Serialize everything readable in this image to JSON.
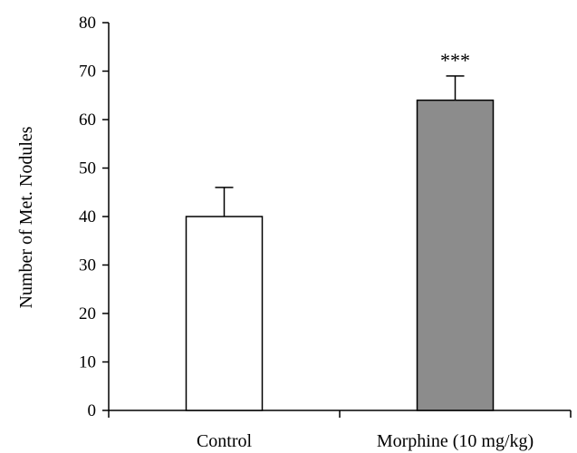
{
  "chart_data": {
    "type": "bar",
    "title": "",
    "xlabel": "",
    "ylabel": "Number of Met. Nodules",
    "ylim": [
      0,
      80
    ],
    "yticks": [
      0,
      10,
      20,
      30,
      40,
      50,
      60,
      70,
      80
    ],
    "categories": [
      "Control",
      "Morphine (10 mg/kg)"
    ],
    "values": [
      40,
      64
    ],
    "errors": [
      6,
      5
    ],
    "bar_colors": [
      "#ffffff",
      "#8c8c8c"
    ],
    "bar_edge_color": "#000000",
    "annotations": [
      "",
      "***"
    ],
    "grid": false,
    "legend": "none"
  }
}
